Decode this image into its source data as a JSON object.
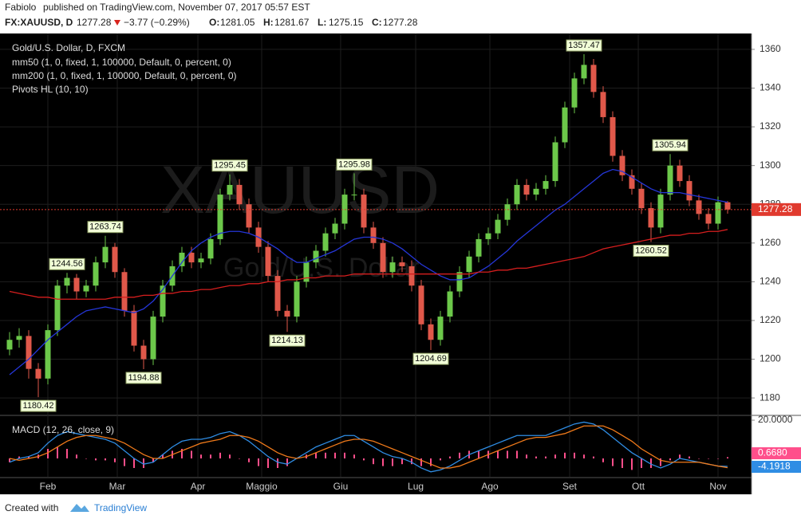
{
  "chart_data": {
    "type": "candlestick",
    "publisher": "Fabiolo",
    "published": "published on TradingView.com, November 07, 2017 05:57 EST",
    "symbol": "FX:XAUUSD, D",
    "change": "−3.77 (−0.29%)",
    "ohlc_labels": [
      "O:",
      "H:",
      "L:",
      "C:"
    ],
    "title": "Gold/U.S. Dollar, D, FXCM",
    "watermark": "XAUUSD",
    "watermark_subtitle": "Gold/U.S. Dollar",
    "pivots_label": "Pivots HL (10, 10)",
    "up_color": "#6cc84a",
    "down_color": "#e0584a",
    "last_price_color": "#e03a2e",
    "grid": true,
    "ylim": [
      1171.4,
      1368.2
    ],
    "yticks": [
      1180,
      1200,
      1220,
      1240,
      1260,
      1280,
      1300,
      1320,
      1340,
      1360
    ],
    "xticks": [
      {
        "value": 4,
        "label": "Feb"
      },
      {
        "value": 11.25,
        "label": "Mar"
      },
      {
        "value": 19.67,
        "label": "Apr"
      },
      {
        "value": 26.33,
        "label": "Maggio"
      },
      {
        "value": 34.58,
        "label": "Giu"
      },
      {
        "value": 42.42,
        "label": "Lug"
      },
      {
        "value": 50.17,
        "label": "Ago"
      },
      {
        "value": 58.5,
        "label": "Set"
      },
      {
        "value": 65.67,
        "label": "Ott"
      },
      {
        "value": 74,
        "label": "Nov"
      }
    ],
    "candles": [
      [
        1205,
        1214,
        1202,
        1210
      ],
      [
        1210,
        1216,
        1206,
        1212
      ],
      [
        1212,
        1215,
        1190,
        1195
      ],
      [
        1195,
        1198,
        1180.42,
        1190
      ],
      [
        1190,
        1218,
        1187,
        1215
      ],
      [
        1215,
        1241,
        1212,
        1238
      ],
      [
        1238,
        1244.56,
        1234,
        1242
      ],
      [
        1242,
        1244,
        1231,
        1235
      ],
      [
        1235,
        1241,
        1232,
        1238
      ],
      [
        1238,
        1253,
        1235,
        1250
      ],
      [
        1250,
        1263.74,
        1247,
        1258
      ],
      [
        1258,
        1260,
        1242,
        1245
      ],
      [
        1245,
        1247,
        1222,
        1225
      ],
      [
        1225,
        1228,
        1204,
        1207
      ],
      [
        1207,
        1210,
        1194.88,
        1200
      ],
      [
        1200,
        1225,
        1197,
        1222
      ],
      [
        1222,
        1241,
        1219,
        1238
      ],
      [
        1238,
        1251,
        1235,
        1248
      ],
      [
        1248,
        1258,
        1245,
        1255
      ],
      [
        1255,
        1258,
        1247,
        1250
      ],
      [
        1250,
        1255,
        1247,
        1252
      ],
      [
        1252,
        1265,
        1249,
        1262
      ],
      [
        1262,
        1288,
        1259,
        1285
      ],
      [
        1285,
        1295.45,
        1282,
        1290
      ],
      [
        1290,
        1293,
        1277,
        1280
      ],
      [
        1280,
        1283,
        1265,
        1268
      ],
      [
        1268,
        1271,
        1255,
        1258
      ],
      [
        1258,
        1261,
        1240,
        1243
      ],
      [
        1243,
        1246,
        1222,
        1225
      ],
      [
        1225,
        1228,
        1214.13,
        1222
      ],
      [
        1222,
        1243,
        1219,
        1240
      ],
      [
        1240,
        1253,
        1237,
        1250
      ],
      [
        1250,
        1259,
        1247,
        1256
      ],
      [
        1256,
        1268,
        1253,
        1265
      ],
      [
        1265,
        1273,
        1262,
        1270
      ],
      [
        1270,
        1288,
        1267,
        1285
      ],
      [
        1285,
        1295.98,
        1282,
        1285
      ],
      [
        1285,
        1288,
        1265,
        1268
      ],
      [
        1268,
        1271,
        1257,
        1260
      ],
      [
        1260,
        1263,
        1242,
        1245
      ],
      [
        1245,
        1253,
        1242,
        1250
      ],
      [
        1250,
        1253,
        1245,
        1248
      ],
      [
        1248,
        1251,
        1235,
        1238
      ],
      [
        1238,
        1241,
        1215,
        1218
      ],
      [
        1218,
        1221,
        1204.69,
        1210
      ],
      [
        1210,
        1225,
        1207,
        1222
      ],
      [
        1222,
        1238,
        1219,
        1235
      ],
      [
        1235,
        1248,
        1232,
        1245
      ],
      [
        1245,
        1256,
        1242,
        1253
      ],
      [
        1253,
        1265,
        1250,
        1262
      ],
      [
        1262,
        1268,
        1259,
        1265
      ],
      [
        1265,
        1275,
        1262,
        1272
      ],
      [
        1272,
        1283,
        1269,
        1280
      ],
      [
        1280,
        1293,
        1277,
        1290
      ],
      [
        1290,
        1293,
        1282,
        1285
      ],
      [
        1285,
        1291,
        1282,
        1288
      ],
      [
        1288,
        1295,
        1285,
        1292
      ],
      [
        1292,
        1315,
        1289,
        1312
      ],
      [
        1312,
        1333,
        1309,
        1330
      ],
      [
        1330,
        1348,
        1327,
        1345
      ],
      [
        1345,
        1357.47,
        1342,
        1352
      ],
      [
        1352,
        1355,
        1335,
        1338
      ],
      [
        1338,
        1341,
        1322,
        1325
      ],
      [
        1325,
        1328,
        1302,
        1305
      ],
      [
        1305,
        1308,
        1292,
        1295
      ],
      [
        1295,
        1298,
        1285,
        1288
      ],
      [
        1288,
        1291,
        1275,
        1278
      ],
      [
        1278,
        1281,
        1260.52,
        1268
      ],
      [
        1268,
        1288,
        1265,
        1285
      ],
      [
        1285,
        1305.94,
        1282,
        1300
      ],
      [
        1300,
        1303,
        1289,
        1292
      ],
      [
        1292,
        1295,
        1279,
        1282
      ],
      [
        1282,
        1285,
        1272,
        1275
      ],
      [
        1275,
        1278,
        1267,
        1270
      ],
      [
        1270,
        1284,
        1267,
        1281.05
      ],
      [
        1281.05,
        1281.67,
        1275.15,
        1277.28
      ]
    ],
    "pivot_highs": [
      1244.56,
      1263.74,
      1295.45,
      1295.98,
      1357.47,
      1305.94
    ],
    "pivot_lows": [
      1180.42,
      1194.88,
      1214.13,
      1204.69,
      1260.52
    ],
    "series": [
      {
        "name": "mm50 (1, 0, fixed, 1, 100000, Default, 0, percent, 0)",
        "color": "#2536d8",
        "values": [
          1192,
          1196,
          1200,
          1205,
          1210,
          1214,
          1218,
          1222,
          1225,
          1226,
          1227,
          1226,
          1225,
          1224,
          1226,
          1230,
          1236,
          1243,
          1250,
          1256,
          1260,
          1263,
          1265,
          1266,
          1266,
          1265,
          1263,
          1260,
          1257,
          1253,
          1250,
          1250,
          1252,
          1254,
          1256,
          1259,
          1262,
          1263,
          1263,
          1262,
          1260,
          1257,
          1253,
          1249,
          1246,
          1243,
          1241,
          1241,
          1242,
          1245,
          1248,
          1252,
          1256,
          1261,
          1265,
          1269,
          1273,
          1277,
          1280,
          1284,
          1288,
          1292,
          1296,
          1298,
          1297,
          1294,
          1291,
          1288,
          1286,
          1286,
          1286,
          1285,
          1284,
          1283,
          1282,
          1281
        ]
      },
      {
        "name": "mm200 (1, 0, fixed, 1, 100000, Default, 0, percent, 0)",
        "color": "#d61e1e",
        "values": [
          1235,
          1234,
          1233,
          1232,
          1232,
          1231,
          1231,
          1231,
          1231,
          1231,
          1231,
          1232,
          1232,
          1232,
          1233,
          1233,
          1234,
          1234,
          1235,
          1235,
          1236,
          1236,
          1237,
          1238,
          1238,
          1239,
          1239,
          1240,
          1240,
          1241,
          1241,
          1242,
          1242,
          1243,
          1243,
          1243,
          1244,
          1244,
          1244,
          1244,
          1244,
          1244,
          1244,
          1244,
          1244,
          1244,
          1244,
          1244,
          1244,
          1245,
          1245,
          1246,
          1246,
          1247,
          1247,
          1248,
          1249,
          1250,
          1251,
          1252,
          1253,
          1255,
          1257,
          1258,
          1259,
          1260,
          1261,
          1262,
          1263,
          1264,
          1264,
          1265,
          1265,
          1266,
          1266,
          1267
        ]
      }
    ],
    "macd": {
      "title": "MACD (12, 26, close, 9)",
      "ylim": [
        -9.6,
        22.1
      ],
      "yticks": [
        {
          "value": 20,
          "label": "20.0000"
        }
      ],
      "lines": [
        {
          "color": "#2f8de4",
          "values": [
            -2,
            0,
            1,
            3,
            8,
            12,
            14,
            13,
            12,
            11,
            10,
            8,
            4,
            0,
            -3,
            -2,
            2,
            6,
            9,
            10,
            10,
            11,
            13,
            14,
            12,
            9,
            5,
            1,
            -2,
            -3,
            0,
            3,
            6,
            8,
            10,
            12,
            12,
            9,
            6,
            3,
            1,
            0,
            -2,
            -5,
            -7,
            -6,
            -4,
            -1,
            2,
            4,
            6,
            8,
            10,
            12,
            12,
            12,
            12,
            14,
            16,
            18,
            19,
            18,
            15,
            11,
            7,
            3,
            0,
            -3,
            -5,
            -3,
            0,
            -1,
            -2,
            -3,
            -4,
            -4.1918
          ]
        },
        {
          "color": "#f07a1a",
          "values": [
            0,
            -1,
            0,
            1,
            3,
            6,
            9,
            11,
            12,
            12,
            11,
            10,
            8,
            5,
            2,
            0,
            0,
            2,
            4,
            6,
            8,
            9,
            10,
            12,
            12,
            11,
            9,
            6,
            3,
            1,
            0,
            1,
            3,
            5,
            7,
            9,
            10,
            10,
            9,
            7,
            5,
            3,
            1,
            -1,
            -3,
            -5,
            -5,
            -4,
            -2,
            0,
            2,
            4,
            6,
            8,
            10,
            11,
            11,
            12,
            13,
            15,
            17,
            17,
            17,
            15,
            12,
            9,
            5,
            2,
            -1,
            -2,
            -2,
            -2,
            -2,
            -3,
            -4,
            -4.8598
          ]
        }
      ],
      "histogram": {
        "color": "#ff4f8b",
        "values": [
          -2,
          1,
          1,
          2,
          5,
          6,
          5,
          2,
          0,
          -1,
          -1,
          -2,
          -4,
          -5,
          -5,
          -2,
          2,
          4,
          5,
          4,
          2,
          2,
          3,
          2,
          0,
          -2,
          -4,
          -5,
          -5,
          -4,
          0,
          2,
          3,
          3,
          3,
          3,
          2,
          -1,
          -3,
          -4,
          -4,
          -3,
          -3,
          -4,
          -4,
          -1,
          1,
          3,
          4,
          4,
          4,
          4,
          4,
          4,
          2,
          1,
          1,
          2,
          3,
          3,
          2,
          1,
          -2,
          -4,
          -5,
          -6,
          -5,
          -5,
          -4,
          -1,
          2,
          1,
          0,
          0,
          0,
          0.668
        ],
        "value_labels": [
          null,
          null,
          null,
          null,
          null,
          null,
          null,
          null,
          null,
          null,
          null,
          null,
          null,
          null,
          null,
          null,
          null,
          null,
          null,
          null,
          null,
          null,
          null,
          null,
          null,
          null,
          null,
          null,
          null,
          null,
          null,
          null,
          null,
          null,
          null,
          null,
          null,
          null,
          null,
          null,
          null,
          null,
          null,
          null,
          null,
          null,
          null,
          null,
          null,
          null,
          null,
          null,
          null,
          null,
          null,
          null,
          null,
          null,
          null,
          null,
          null,
          null,
          null,
          null,
          null,
          null,
          null,
          null,
          null,
          null,
          null,
          null,
          null,
          null,
          null,
          "0.6680"
        ]
      }
    },
    "footer": {
      "text": "Created with",
      "brand": "TradingView"
    }
  }
}
